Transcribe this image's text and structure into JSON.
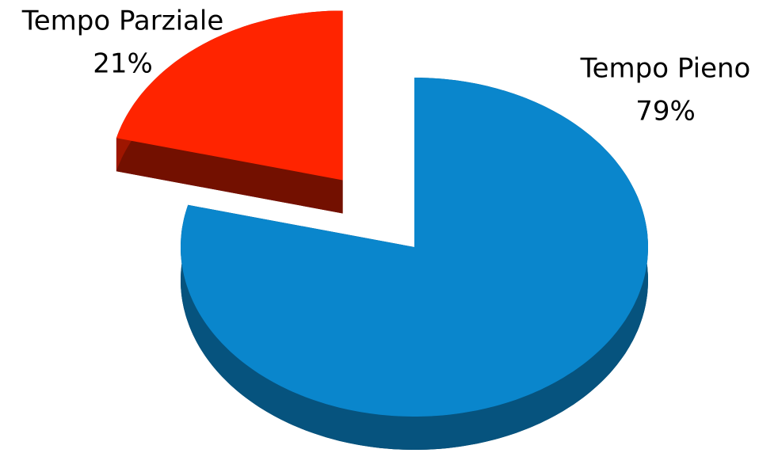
{
  "chart_data": {
    "type": "pie",
    "categories": [
      "Tempo Pieno",
      "Tempo Parziale"
    ],
    "values": [
      79,
      21
    ],
    "value_labels": [
      "79%",
      "21%"
    ],
    "colors": [
      "#0a86cc",
      "#ff2400"
    ],
    "exploded": [
      false,
      true
    ]
  }
}
